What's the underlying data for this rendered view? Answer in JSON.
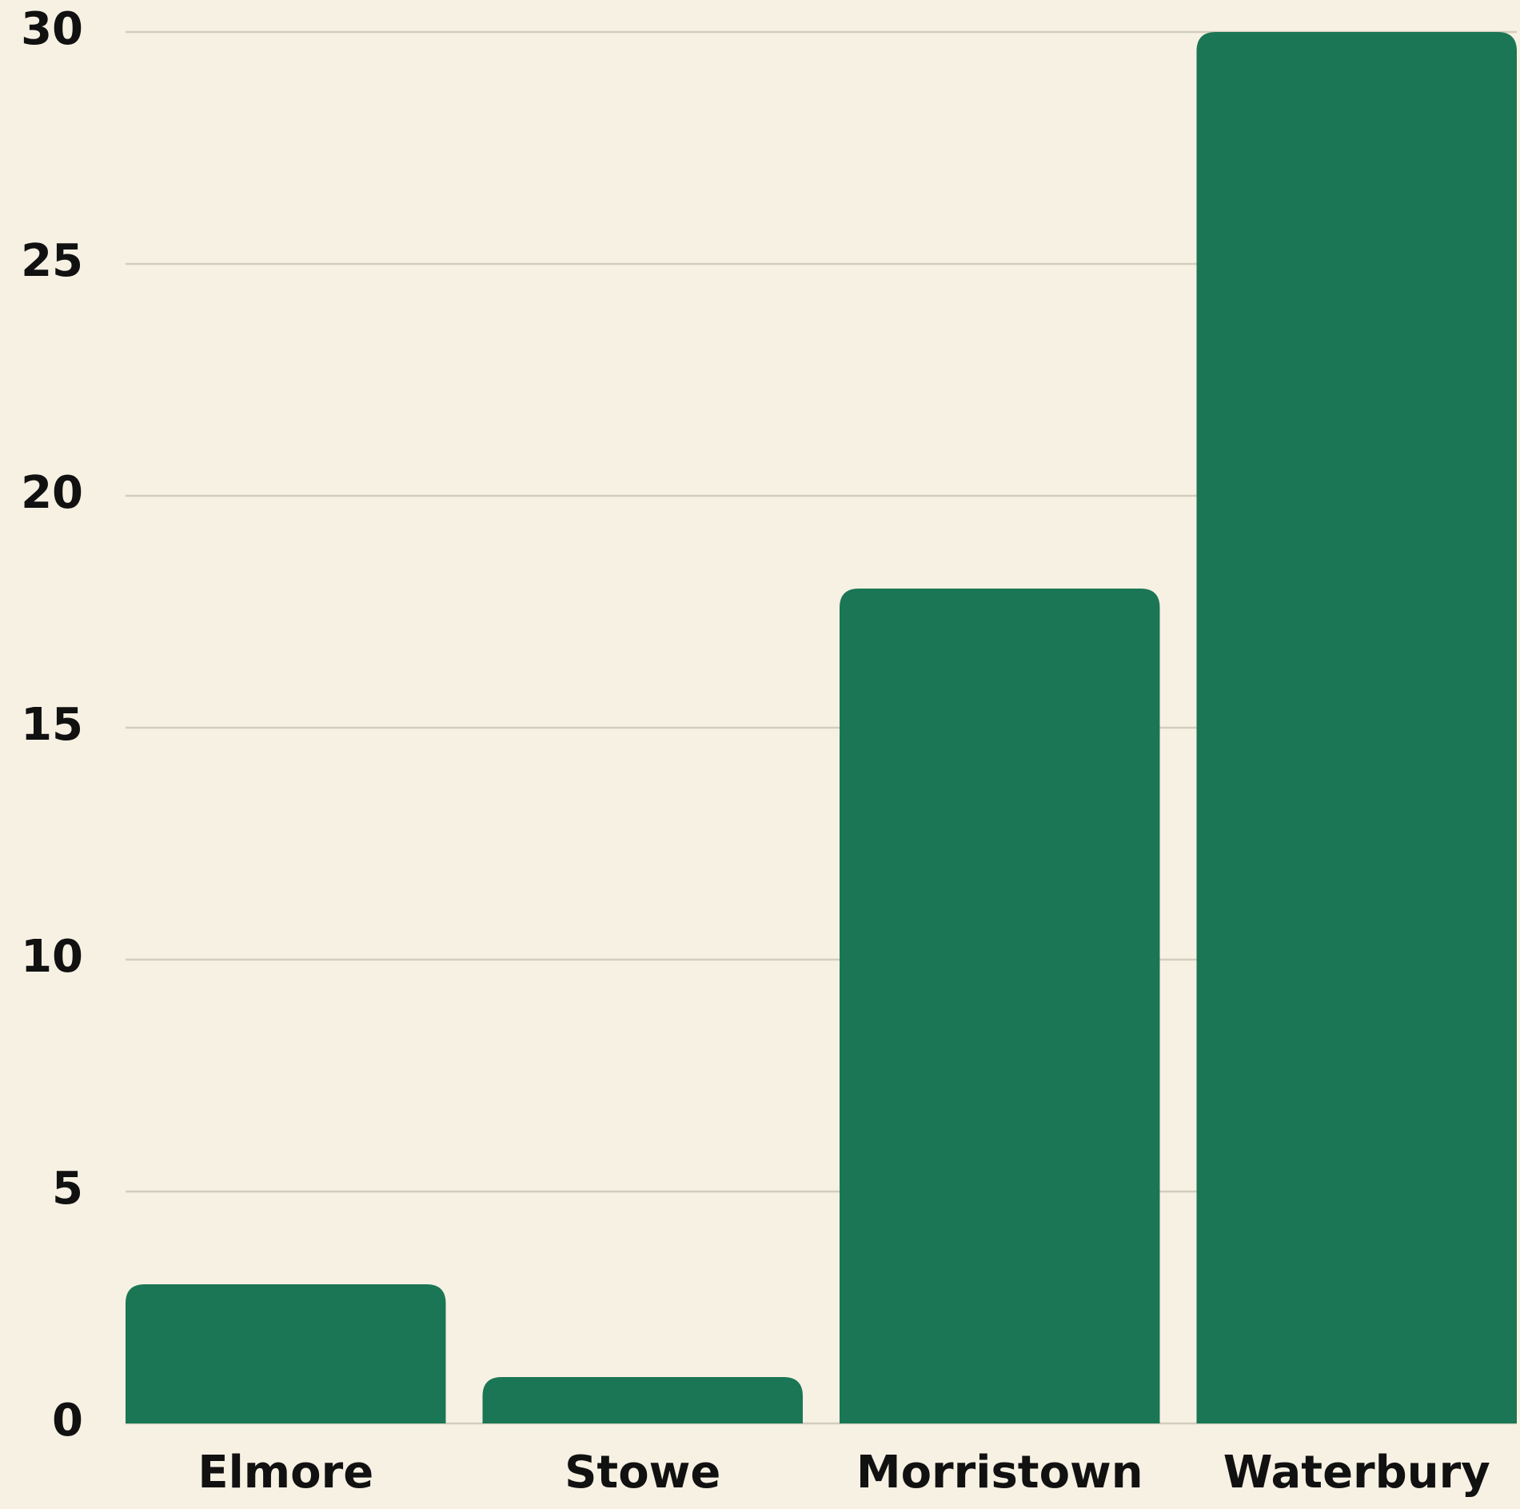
{
  "chart_data": {
    "type": "bar",
    "categories": [
      "Elmore",
      "Stowe",
      "Morristown",
      "Waterbury"
    ],
    "values": [
      3,
      1,
      18,
      30
    ],
    "color": "#1b7655",
    "ylim": [
      0,
      30
    ],
    "yticks": [
      0,
      5,
      10,
      15,
      20,
      25,
      30
    ],
    "grid": true
  }
}
